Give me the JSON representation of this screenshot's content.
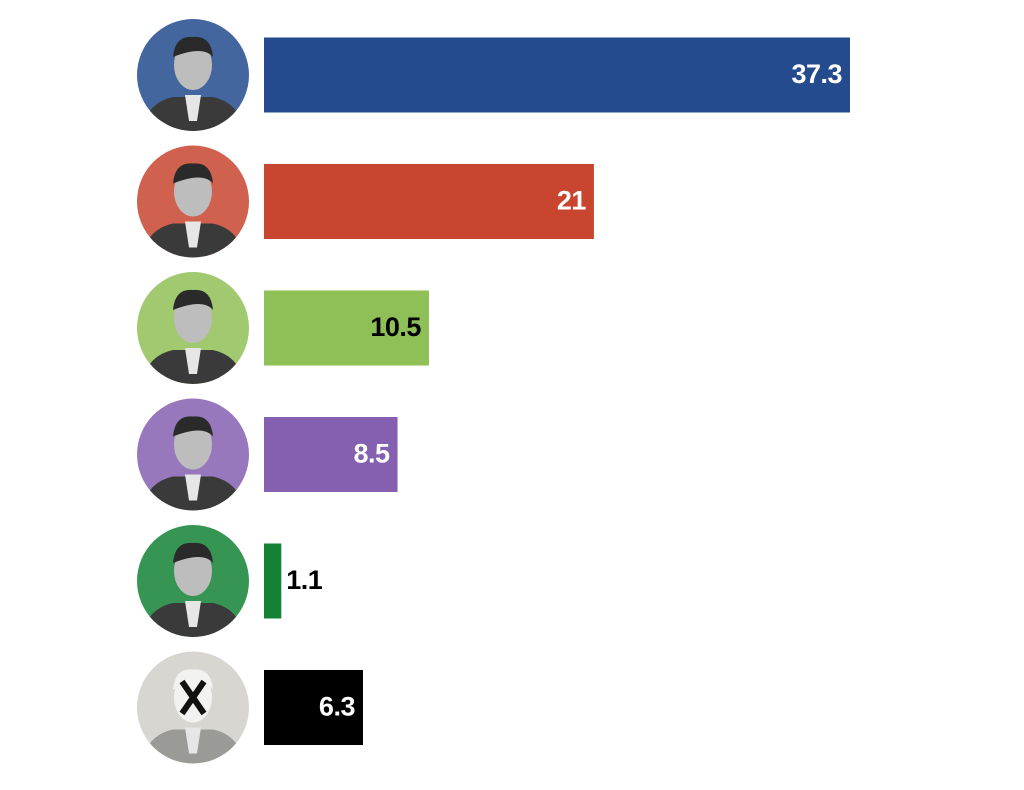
{
  "chart_data": {
    "type": "bar",
    "orientation": "horizontal",
    "values": [
      37.3,
      21,
      10.5,
      8.5,
      1.1,
      6.3
    ],
    "colors": [
      "#234b8e",
      "#c8452f",
      "#8fc057",
      "#8560b0",
      "#148235",
      "#000000"
    ]
  }
}
